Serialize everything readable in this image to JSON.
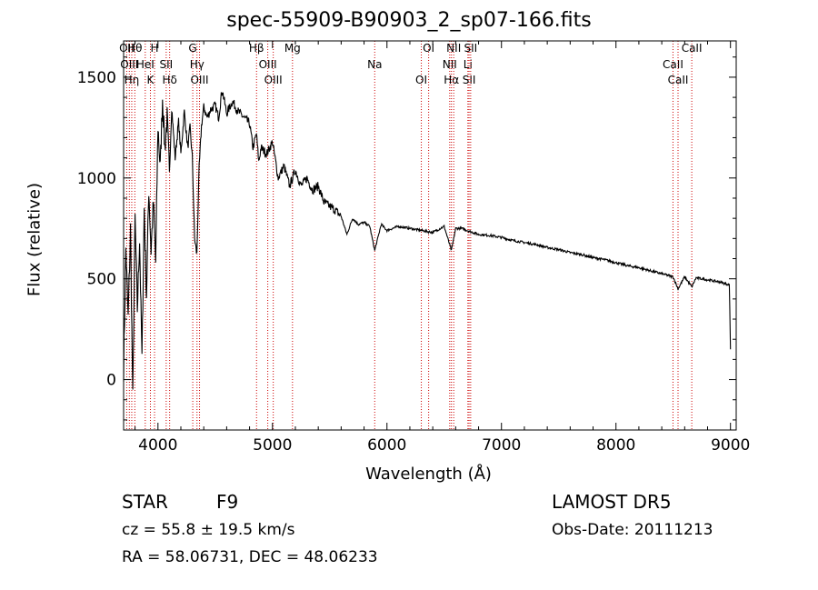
{
  "chart_data": {
    "type": "line",
    "title": "spec-55909-B90903_2_sp07-166.fits",
    "xlabel": "Wavelength (Å)",
    "ylabel": "Flux (relative)",
    "xlim": [
      3700,
      9050
    ],
    "ylim": [
      -250,
      1680
    ],
    "xticks": [
      4000,
      5000,
      6000,
      7000,
      8000,
      9000
    ],
    "yticks": [
      0,
      500,
      1000,
      1500
    ],
    "grid": false,
    "series": [
      {
        "color": "#000000",
        "x": [
          3700,
          3720,
          3740,
          3760,
          3780,
          3800,
          3820,
          3840,
          3860,
          3880,
          3900,
          3920,
          3940,
          3960,
          3980,
          4000,
          4020,
          4040,
          4060,
          4080,
          4100,
          4120,
          4150,
          4180,
          4200,
          4230,
          4260,
          4280,
          4300,
          4320,
          4340,
          4360,
          4380,
          4400,
          4430,
          4460,
          4500,
          4530,
          4560,
          4600,
          4650,
          4700,
          4750,
          4800,
          4830,
          4860,
          4880,
          4900,
          4950,
          5000,
          5050,
          5100,
          5150,
          5200,
          5250,
          5300,
          5350,
          5400,
          5450,
          5500,
          5550,
          5600,
          5650,
          5700,
          5750,
          5800,
          5850,
          5893,
          5950,
          6000,
          6100,
          6200,
          6300,
          6400,
          6500,
          6563,
          6600,
          6650,
          6700,
          6800,
          6900,
          7000,
          7100,
          7200,
          7300,
          7400,
          7500,
          7600,
          7700,
          7800,
          7900,
          8000,
          8100,
          8200,
          8300,
          8400,
          8498,
          8542,
          8600,
          8662,
          8700,
          8800,
          8900,
          8990,
          9000
        ],
        "y": [
          50,
          650,
          300,
          750,
          -100,
          800,
          350,
          700,
          100,
          850,
          420,
          950,
          640,
          880,
          580,
          1260,
          1050,
          1400,
          1150,
          1300,
          1020,
          1350,
          1100,
          1280,
          1120,
          1330,
          1150,
          1250,
          1100,
          700,
          620,
          1050,
          1260,
          1350,
          1300,
          1340,
          1360,
          1300,
          1440,
          1320,
          1380,
          1330,
          1300,
          1270,
          1150,
          1220,
          1080,
          1150,
          1120,
          1180,
          1000,
          1060,
          960,
          1040,
          960,
          1000,
          940,
          960,
          880,
          860,
          840,
          810,
          720,
          800,
          770,
          780,
          760,
          640,
          770,
          740,
          760,
          750,
          740,
          730,
          760,
          640,
          750,
          750,
          740,
          720,
          715,
          705,
          690,
          680,
          670,
          655,
          645,
          630,
          620,
          605,
          595,
          580,
          565,
          555,
          540,
          525,
          510,
          450,
          510,
          460,
          505,
          495,
          485,
          470,
          150
        ]
      }
    ],
    "lines": [
      {
        "wl": 3727,
        "label": "OII"
      },
      {
        "wl": 3750,
        "label": "OIII"
      },
      {
        "wl": 3771,
        "label": "Hη"
      },
      {
        "wl": 3798,
        "label": "Hθ"
      },
      {
        "wl": 3889,
        "label": "HeI"
      },
      {
        "wl": 3934,
        "label": "K"
      },
      {
        "wl": 3970,
        "label": "H"
      },
      {
        "wl": 4072,
        "label": "SII"
      },
      {
        "wl": 4102,
        "label": "Hδ"
      },
      {
        "wl": 4304,
        "label": "G"
      },
      {
        "wl": 4341,
        "label": "Hγ"
      },
      {
        "wl": 4363,
        "label": "OIII"
      },
      {
        "wl": 4861,
        "label": "Hβ"
      },
      {
        "wl": 4959,
        "label": "OIII"
      },
      {
        "wl": 5007,
        "label": "OIII"
      },
      {
        "wl": 5175,
        "label": "Mg"
      },
      {
        "wl": 5893,
        "label": "Na"
      },
      {
        "wl": 6300,
        "label": "OI"
      },
      {
        "wl": 6364,
        "label": "OI"
      },
      {
        "wl": 6548,
        "label": "NII"
      },
      {
        "wl": 6563,
        "label": "Hα"
      },
      {
        "wl": 6583,
        "label": "NII"
      },
      {
        "wl": 6707,
        "label": "Li"
      },
      {
        "wl": 6717,
        "label": "SII"
      },
      {
        "wl": 6731,
        "label": "SII"
      },
      {
        "wl": 8498,
        "label": "CaII"
      },
      {
        "wl": 8542,
        "label": "CaII"
      },
      {
        "wl": 8662,
        "label": "CaII"
      }
    ],
    "line_color": "#cc0000"
  },
  "info": {
    "objclass": "STAR",
    "subclass": "F9",
    "survey": "LAMOST DR5",
    "cz": "cz = 55.8 ± 19.5 km/s",
    "obsdate": "Obs-Date: 20111213",
    "radec": "RA =  58.06731, DEC =  48.06233"
  }
}
